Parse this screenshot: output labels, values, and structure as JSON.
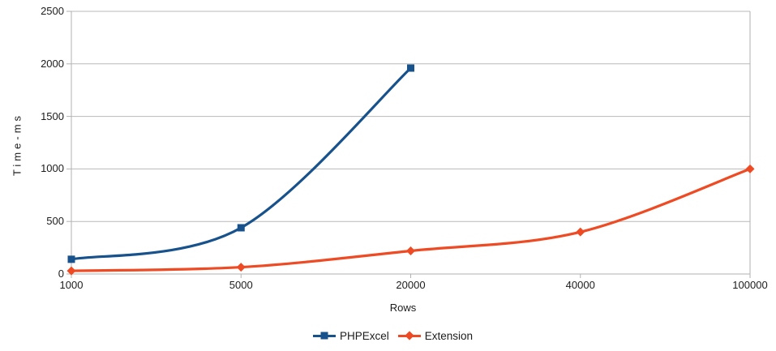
{
  "axes": {
    "x_title": "Rows",
    "y_title": "Time-ms"
  },
  "legend": {
    "items": [
      {
        "label": "PHPExcel"
      },
      {
        "label": "Extension"
      }
    ]
  },
  "colors": {
    "gridline": "#b9b9b9",
    "axis": "#b2b2b2",
    "text": "#1c1c1c",
    "background": "#ffffff",
    "series_blue": "#17528C",
    "series_orange": "#EE4A23"
  },
  "chart_data": {
    "type": "line",
    "title": "",
    "xlabel": "Rows",
    "ylabel": "Time-ms",
    "categories": [
      "1000",
      "5000",
      "20000",
      "40000",
      "100000"
    ],
    "x_values": [
      1000,
      5000,
      20000,
      40000,
      100000
    ],
    "ylim": [
      0,
      2500
    ],
    "yticks": [
      0,
      500,
      1000,
      1500,
      2000,
      2500
    ],
    "ytick_labels": [
      "0",
      "500",
      "1000",
      "1500",
      "2000",
      "2500"
    ],
    "grid": "horizontal",
    "line_smoothing": true,
    "legend_position": "bottom-center",
    "series": [
      {
        "name": "PHPExcel",
        "color": "#17528C",
        "marker": "square",
        "values": [
          140,
          440,
          1960
        ]
      },
      {
        "name": "Extension",
        "color": "#EE4A23",
        "marker": "diamond",
        "values": [
          30,
          65,
          220,
          400,
          1000
        ]
      }
    ]
  }
}
